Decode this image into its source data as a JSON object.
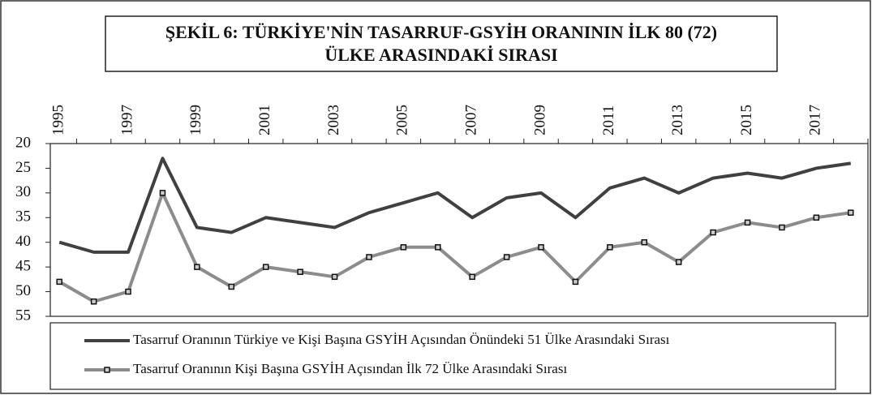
{
  "chart_data": {
    "type": "line",
    "title": [
      "ŞEKİL 6: TÜRKİYE'NİN  TASARRUF-GSYİH  ORANININ İLK 80 (72)",
      "ÜLKE ARASINDAKİ SIRASI"
    ],
    "categories": [
      "1995",
      null,
      "1997",
      null,
      "1999",
      null,
      "2001",
      null,
      "2003",
      null,
      "2005",
      null,
      "2007",
      null,
      "2009",
      null,
      "2011",
      null,
      "2013",
      null,
      "2015",
      null,
      "2017",
      null
    ],
    "series": [
      {
        "name": "Tasarruf Oranının Türkiye ve Kişi Başına GSYİH Açısından Önündeki 51 Ülke Arasındaki Sırası",
        "color": "#404040",
        "marker": false,
        "values": [
          40,
          42,
          42,
          23,
          37,
          38,
          35,
          36,
          37,
          34,
          32,
          30,
          35,
          31,
          30,
          35,
          29,
          27,
          30,
          27,
          26,
          27,
          25,
          24
        ]
      },
      {
        "name": "Tasarruf Oranının Kişi Başına GSYİH Açısından İlk 72 Ülke Arasındaki Sırası",
        "color": "#8c8c8c",
        "marker": true,
        "values": [
          48,
          52,
          50,
          30,
          45,
          49,
          45,
          46,
          47,
          43,
          41,
          41,
          47,
          43,
          41,
          48,
          41,
          40,
          44,
          38,
          36,
          37,
          35,
          34
        ]
      }
    ],
    "ylim": [
      20,
      55
    ],
    "y_inverted": true,
    "yticks": [
      20,
      25,
      30,
      35,
      40,
      45,
      50,
      55
    ],
    "grid": false
  }
}
